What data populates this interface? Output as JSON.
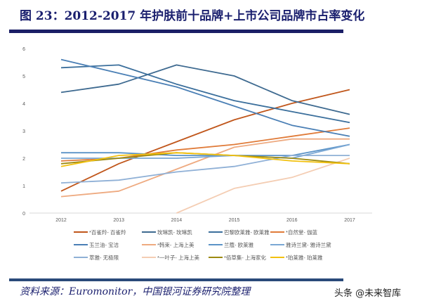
{
  "title": "图 23：2012-2017 年护肤前十品牌+上市公司品牌市占率变化",
  "source": "资料来源：Euromonitor，中国银河证券研究院整理",
  "watermark": "头条 @未来智库",
  "chart_data": {
    "type": "line",
    "title": "",
    "xlabel": "",
    "ylabel": "",
    "x": [
      "2012",
      "2013",
      "2014",
      "2015",
      "2016",
      "2017"
    ],
    "ylim": [
      0,
      6
    ],
    "yticks": [
      0,
      1,
      2,
      3,
      4,
      5,
      6
    ],
    "grid": false,
    "legend_position": "bottom",
    "series": [
      {
        "name": "*百雀羚- 百雀羚",
        "color": "#c0561b",
        "values": [
          0.8,
          1.8,
          2.6,
          3.4,
          4.0,
          4.5
        ]
      },
      {
        "name": "玫琳凯- 玫琳凯",
        "color": "#3e6a90",
        "values": [
          4.4,
          4.7,
          5.4,
          5.0,
          4.1,
          3.6
        ]
      },
      {
        "name": "巴黎欧莱雅- 欧莱雅",
        "color": "#3b6f9c",
        "values": [
          5.3,
          5.4,
          4.7,
          4.1,
          3.7,
          3.3
        ]
      },
      {
        "name": "*自然堂- 伽蓝",
        "color": "#e07b39",
        "values": [
          1.9,
          2.0,
          2.3,
          2.5,
          2.8,
          3.1
        ]
      },
      {
        "name": "玉兰油- 宝洁",
        "color": "#4a7fb5",
        "values": [
          5.6,
          5.1,
          4.6,
          3.9,
          3.2,
          2.8
        ]
      },
      {
        "name": "*韩束- 上海上美",
        "color": "#eeaa80",
        "values": [
          0.6,
          0.8,
          1.6,
          2.4,
          2.7,
          2.7
        ]
      },
      {
        "name": "兰蔻- 欧莱雅",
        "color": "#5b93c7",
        "values": [
          2.2,
          2.2,
          2.1,
          2.1,
          2.1,
          2.5
        ]
      },
      {
        "name": "雅诗兰黛- 雅诗兰黛",
        "color": "#7aa7d4",
        "values": [
          2.0,
          2.0,
          2.0,
          2.1,
          2.0,
          2.5
        ]
      },
      {
        "name": "萃雅- 无极限",
        "color": "#8fb0d6",
        "values": [
          1.1,
          1.2,
          1.5,
          1.7,
          2.1,
          2.1
        ]
      },
      {
        "name": "*一叶子- 上海上美",
        "color": "#f4cdb3",
        "values": [
          null,
          null,
          0,
          0.9,
          1.3,
          2.0
        ]
      },
      {
        "name": "*佰草集- 上海家化",
        "color": "#9c8a10",
        "values": [
          1.8,
          2.0,
          2.2,
          2.1,
          2.0,
          1.8
        ]
      },
      {
        "name": "*珀莱雅- 珀莱雅",
        "color": "#f2c10f",
        "values": [
          1.7,
          2.1,
          2.2,
          2.1,
          1.9,
          1.8
        ]
      }
    ]
  }
}
